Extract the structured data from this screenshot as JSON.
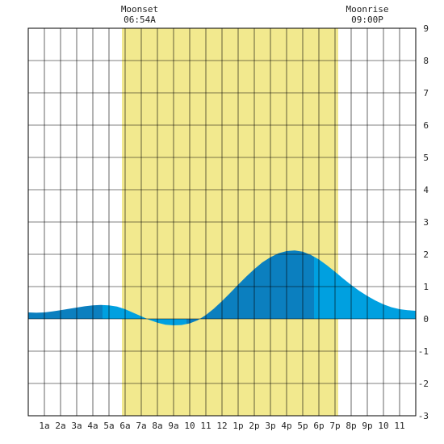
{
  "chart_data": {
    "type": "area",
    "title": "",
    "xlabel": "",
    "ylabel": "",
    "x_ticks": [
      "1a",
      "2a",
      "3a",
      "4a",
      "5a",
      "6a",
      "7a",
      "8a",
      "9a",
      "10",
      "11",
      "12",
      "1p",
      "2p",
      "3p",
      "4p",
      "5p",
      "6p",
      "7p",
      "8p",
      "9p",
      "10",
      "11"
    ],
    "y_ticks": [
      "-3",
      "-2",
      "-1",
      "0",
      "1",
      "2",
      "3",
      "4",
      "5",
      "6",
      "7",
      "8",
      "9"
    ],
    "xlim": [
      0,
      24
    ],
    "ylim": [
      -3,
      9
    ],
    "grid": true,
    "daylight": {
      "start_hour": 5.8,
      "end_hour": 19.2,
      "color": "#f2e98e"
    },
    "annotations": [
      {
        "label": "Moonset",
        "time": "06:54A",
        "hour": 6.9
      },
      {
        "label": "Moonrise",
        "time": "09:00P",
        "hour": 21.0
      }
    ],
    "tide_extremes": [
      {
        "hour": 4.6,
        "value": 0.43
      },
      {
        "hour": 9.8,
        "value": -0.2
      },
      {
        "hour": 17.7,
        "value": 2.12
      }
    ],
    "series": [
      {
        "x": [
          0,
          0.5,
          1,
          1.5,
          2,
          2.5,
          3,
          3.5,
          4,
          4.5,
          5,
          5.5,
          6,
          6.5,
          7,
          7.5,
          8,
          8.5,
          9,
          9.5,
          10,
          10.5,
          11,
          11.5,
          12,
          12.5,
          13,
          13.5,
          14,
          14.5,
          15,
          15.5,
          16,
          16.5,
          17,
          17.5,
          18,
          18.5,
          19,
          19.5,
          20,
          20.5,
          21,
          21.5,
          22,
          22.5,
          23,
          23.5,
          24
        ],
        "values": [
          0.2,
          0.19,
          0.2,
          0.23,
          0.27,
          0.31,
          0.35,
          0.39,
          0.42,
          0.43,
          0.42,
          0.38,
          0.3,
          0.19,
          0.08,
          -0.03,
          -0.12,
          -0.18,
          -0.2,
          -0.19,
          -0.14,
          -0.04,
          0.12,
          0.32,
          0.55,
          0.8,
          1.06,
          1.31,
          1.54,
          1.75,
          1.91,
          2.03,
          2.1,
          2.12,
          2.08,
          1.98,
          1.84,
          1.66,
          1.46,
          1.25,
          1.05,
          0.87,
          0.71,
          0.57,
          0.45,
          0.36,
          0.3,
          0.27,
          0.25
        ]
      }
    ],
    "colors": {
      "rising": "#0b7fbf",
      "falling": "#00a0e0",
      "grid": "#000000",
      "border": "#000000"
    }
  }
}
